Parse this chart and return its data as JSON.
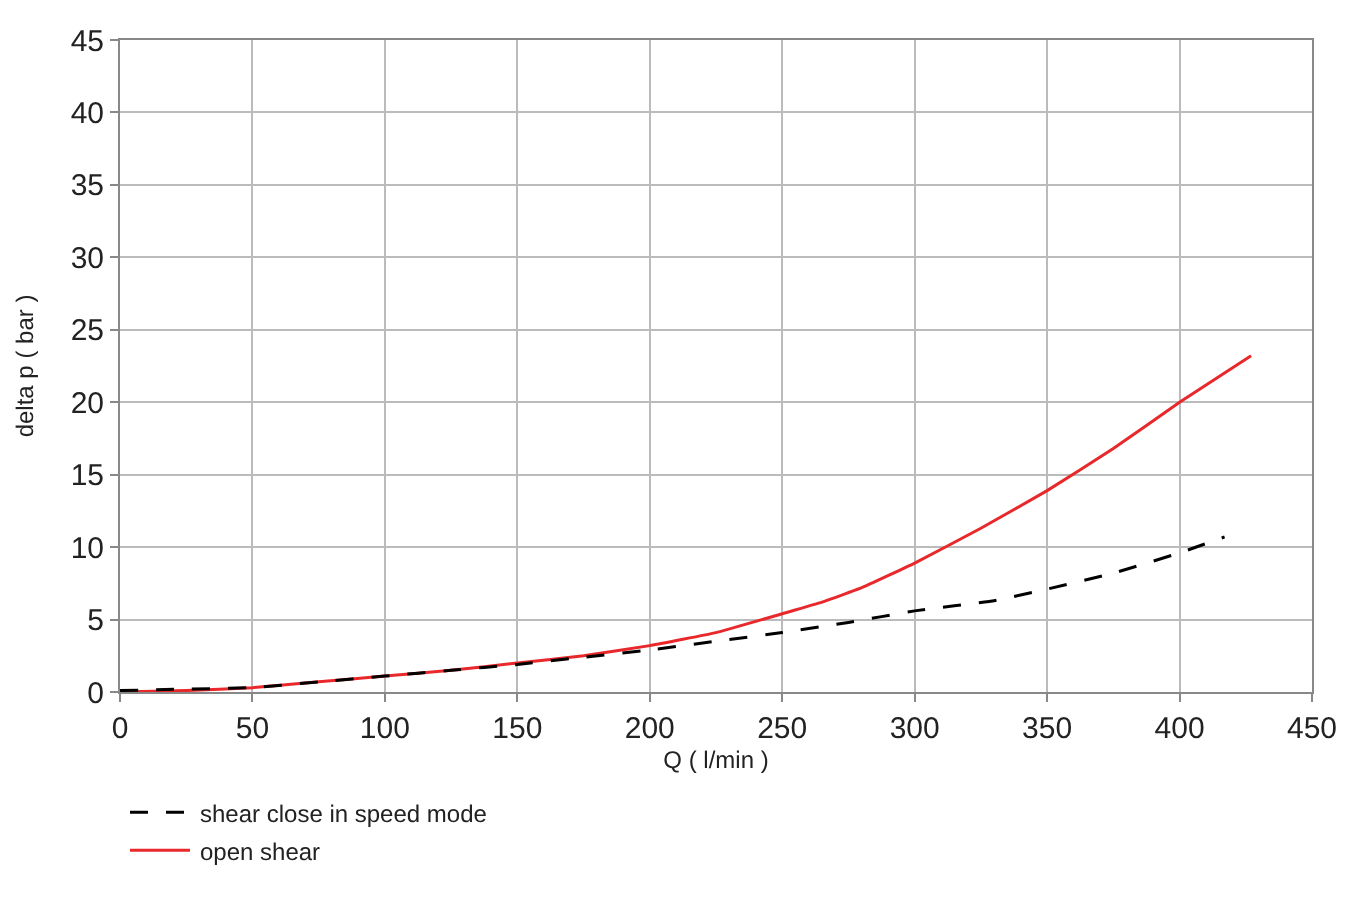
{
  "chart_data": {
    "type": "line",
    "xlabel": "Q ( l/min )",
    "ylabel": "delta p ( bar )",
    "xlim": [
      0,
      450
    ],
    "xticks": [
      0,
      50,
      100,
      150,
      200,
      250,
      300,
      350,
      400,
      450
    ],
    "ylim": [
      0,
      45
    ],
    "yticks": [
      0,
      5,
      10,
      15,
      20,
      25,
      30,
      35,
      40,
      45
    ],
    "grid": true,
    "legend": "bottom",
    "marker": "none",
    "series": [
      {
        "name": "shear close in speed mode",
        "color": "#000000",
        "line_style": "dashed",
        "x": [
          0,
          25,
          50,
          75,
          100,
          125,
          150,
          175,
          200,
          225,
          250,
          275,
          300,
          330,
          350,
          375,
          400,
          417
        ],
        "values": [
          0.1,
          0.2,
          0.3,
          0.7,
          1.1,
          1.5,
          1.9,
          2.4,
          2.9,
          3.5,
          4.1,
          4.8,
          5.6,
          6.3,
          7.1,
          8.2,
          9.6,
          10.7
        ]
      },
      {
        "name": "open shear",
        "color": "#e8282b",
        "line_style": "solid",
        "x": [
          0,
          25,
          50,
          75,
          100,
          125,
          150,
          175,
          200,
          225,
          250,
          265,
          280,
          300,
          325,
          350,
          375,
          400,
          427
        ],
        "values": [
          0,
          0.1,
          0.3,
          0.7,
          1.1,
          1.5,
          2.0,
          2.5,
          3.2,
          4.1,
          5.4,
          6.2,
          7.2,
          8.9,
          11.3,
          13.9,
          16.8,
          20,
          23.2
        ]
      }
    ]
  }
}
